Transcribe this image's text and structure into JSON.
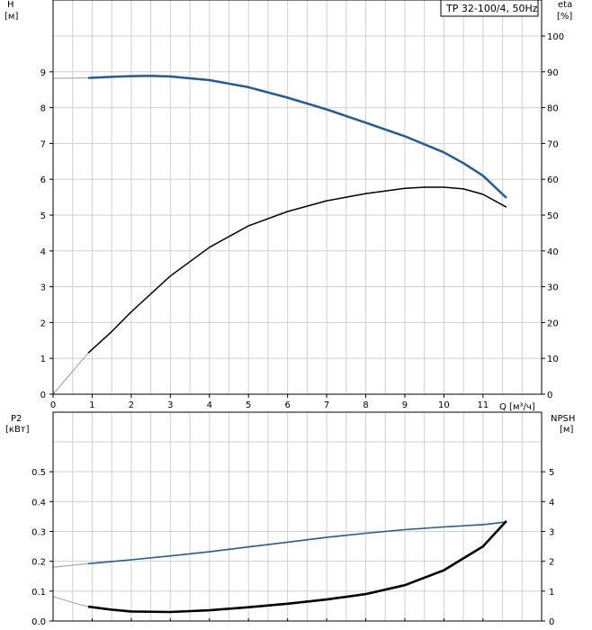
{
  "chart_data": [
    {
      "type": "line",
      "legend": "TP 32-100/4, 50Hz",
      "xlabel": "Q [м³/ч]",
      "ylabel_left": "H\n[м]",
      "ylabel_right": "eta\n[%]",
      "xlim": [
        0,
        12.5
      ],
      "ylim_left": [
        0,
        10
      ],
      "ylim_right": [
        0,
        100
      ],
      "x_ticks": [
        "0",
        "1",
        "2",
        "3",
        "4",
        "5",
        "6",
        "7",
        "8",
        "9",
        "10",
        "11"
      ],
      "y_ticks_left": [
        "0",
        "1",
        "2",
        "3",
        "4",
        "5",
        "6",
        "7",
        "8",
        "9"
      ],
      "y_ticks_right": [
        "0",
        "10",
        "20",
        "30",
        "40",
        "50",
        "60",
        "70",
        "80",
        "90",
        "100"
      ],
      "grid": true,
      "series": [
        {
          "axis": "left",
          "color": "#1f5c99",
          "extrapolated_x": [
            0,
            0.9
          ],
          "x": [
            0.9,
            1.5,
            2,
            2.5,
            3,
            4,
            5,
            6,
            7,
            8,
            9,
            10,
            10.5,
            11,
            11.6
          ],
          "values": [
            8.83,
            8.86,
            8.88,
            8.89,
            8.87,
            8.77,
            8.57,
            8.28,
            7.95,
            7.58,
            7.2,
            6.75,
            6.45,
            6.1,
            5.48
          ],
          "extrapolated_values": [
            8.82,
            8.83
          ]
        },
        {
          "axis": "right",
          "color": "#000000",
          "extrapolated_x": [
            0,
            0.9
          ],
          "x": [
            0.9,
            1.5,
            2,
            3,
            4,
            5,
            6,
            7,
            8,
            9,
            9.5,
            10,
            10.5,
            11,
            11.6
          ],
          "values": [
            11.5,
            17.5,
            23,
            33,
            41,
            47,
            51,
            54,
            56,
            57.5,
            57.8,
            57.8,
            57.3,
            55.8,
            52.2
          ],
          "extrapolated_values": [
            0,
            11.5
          ]
        }
      ]
    },
    {
      "type": "line",
      "xlabel": "",
      "ylabel_left": "P2\n[кВт]",
      "ylabel_right": "NPSH\n[м]",
      "xlim": [
        0,
        12.5
      ],
      "ylim_left": [
        0,
        0.6
      ],
      "ylim_right": [
        0,
        6
      ],
      "y_ticks_left": [
        "0.0",
        "0.1",
        "0.2",
        "0.3",
        "0.4",
        "0.5"
      ],
      "y_ticks_right": [
        "0",
        "1",
        "2",
        "3",
        "4",
        "5"
      ],
      "grid": true,
      "series": [
        {
          "axis": "left",
          "color": "#1f5c99",
          "extrapolated_x": [
            0,
            0.9
          ],
          "x": [
            0.9,
            2,
            3,
            4,
            5,
            6,
            7,
            8,
            9,
            10,
            11,
            11.6
          ],
          "values": [
            0.192,
            0.205,
            0.218,
            0.232,
            0.248,
            0.264,
            0.28,
            0.294,
            0.306,
            0.315,
            0.323,
            0.332
          ],
          "extrapolated_values": [
            0.18,
            0.192
          ]
        },
        {
          "axis": "right",
          "color": "#000000",
          "extrapolated_x": [
            0,
            0.3,
            0.6,
            0.9
          ],
          "x": [
            0.9,
            1.5,
            2,
            3,
            4,
            5,
            6,
            7,
            8,
            9,
            10,
            11,
            11.6
          ],
          "values": [
            0.48,
            0.38,
            0.32,
            0.3,
            0.36,
            0.46,
            0.58,
            0.72,
            0.9,
            1.2,
            1.7,
            2.5,
            3.35
          ],
          "extrapolated_values": [
            0.82,
            0.7,
            0.58,
            0.48
          ]
        }
      ]
    }
  ]
}
